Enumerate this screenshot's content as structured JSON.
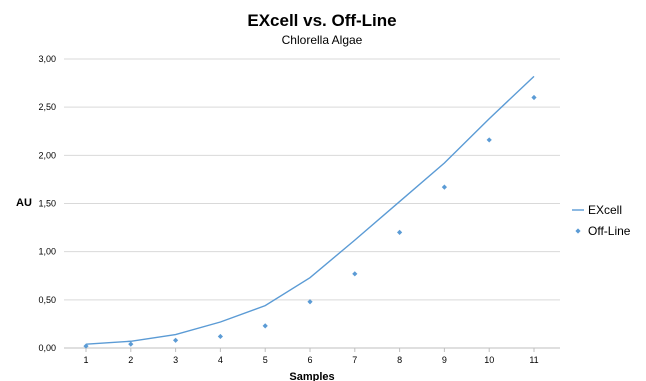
{
  "chart_data": {
    "type": "line",
    "title": "EXcell vs. Off-Line",
    "subtitle": "Chlorella Algae",
    "xlabel": "Samples",
    "ylabel": "AU",
    "x": [
      1,
      2,
      3,
      4,
      5,
      6,
      7,
      8,
      9,
      10,
      11
    ],
    "x_tick_labels": [
      "1",
      "2",
      "3",
      "4",
      "5",
      "6",
      "7",
      "8",
      "9",
      "10",
      "11"
    ],
    "y_tick_labels": [
      "0,00",
      "0,50",
      "1,00",
      "1,50",
      "2,00",
      "2,50",
      "3,00"
    ],
    "ylim": [
      0,
      3
    ],
    "grid": "horizontal",
    "legend_position": "right",
    "series": [
      {
        "name": "EXcell",
        "type": "line",
        "color": "#5b9bd5",
        "values": [
          0.04,
          0.07,
          0.14,
          0.27,
          0.44,
          0.73,
          1.12,
          1.52,
          1.92,
          2.38,
          2.82
        ]
      },
      {
        "name": "Off-Line",
        "type": "scatter",
        "marker": "diamond",
        "color": "#5b9bd5",
        "values": [
          0.02,
          0.04,
          0.08,
          0.12,
          0.23,
          0.48,
          0.77,
          1.2,
          1.67,
          2.16,
          2.6
        ]
      }
    ]
  }
}
